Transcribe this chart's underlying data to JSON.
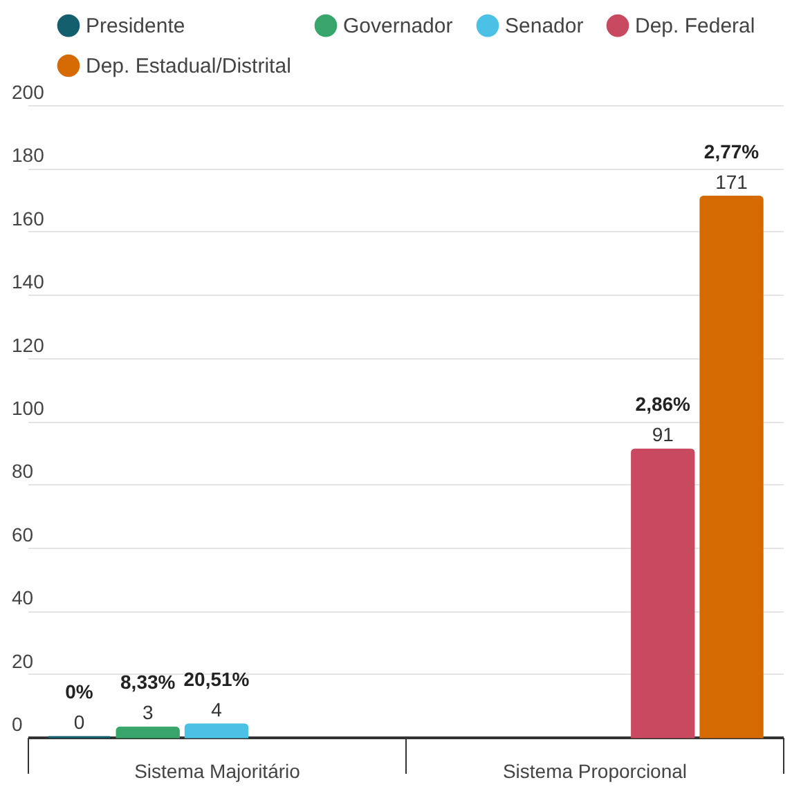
{
  "chart_data": {
    "type": "bar",
    "categories": [
      "Sistema Majoritário",
      "Sistema Proporcional"
    ],
    "series": [
      {
        "name": "Presidente",
        "color": "#135f6d",
        "values": [
          0,
          null
        ]
      },
      {
        "name": "Governador",
        "color": "#38a56b",
        "values": [
          3,
          null
        ]
      },
      {
        "name": "Senador",
        "color": "#4cc1e6",
        "values": [
          4,
          null
        ]
      },
      {
        "name": "Dep. Federal",
        "color": "#c94a60",
        "values": [
          null,
          91
        ]
      },
      {
        "name": "Dep. Estadual/Distrital",
        "color": "#d66a02",
        "values": [
          null,
          171
        ]
      }
    ],
    "ylim": [
      0,
      200
    ],
    "yticks": [
      0,
      20,
      40,
      60,
      80,
      100,
      120,
      140,
      160,
      180,
      200
    ],
    "grid": "y",
    "legend": "top",
    "data_labels": true,
    "annotations": [
      "0%",
      "8,33%",
      "20,51%",
      "2,86%",
      "2,77%"
    ]
  }
}
